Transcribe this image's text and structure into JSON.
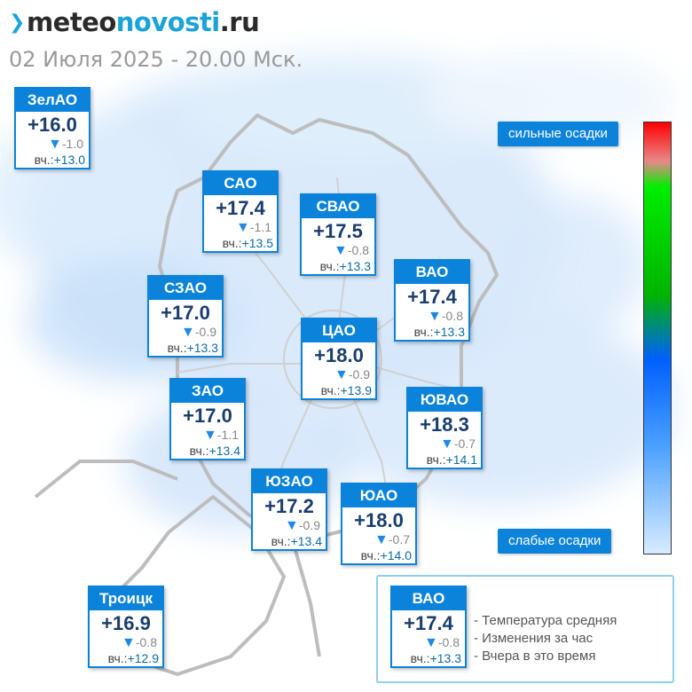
{
  "header": {
    "logo_prefix": "meteo",
    "logo_highlight": "novosti",
    "logo_suffix": ".ru",
    "datetime": "02 Июля 2025 - 20.00 Мск."
  },
  "districts": [
    {
      "id": "zelao",
      "name": "ЗелАО",
      "temp": "+16.0",
      "delta": "-1.0",
      "yesterday": "+13.0"
    },
    {
      "id": "sao",
      "name": "САО",
      "temp": "+17.4",
      "delta": "-1.1",
      "yesterday": "+13.5"
    },
    {
      "id": "svao",
      "name": "СВАО",
      "temp": "+17.5",
      "delta": "-0.8",
      "yesterday": "+13.3"
    },
    {
      "id": "vao",
      "name": "ВАО",
      "temp": "+17.4",
      "delta": "-0.8",
      "yesterday": "+13.3"
    },
    {
      "id": "szao",
      "name": "СЗАО",
      "temp": "+17.0",
      "delta": "-0.9",
      "yesterday": "+13.3"
    },
    {
      "id": "cao",
      "name": "ЦАО",
      "temp": "+18.0",
      "delta": "-0.9",
      "yesterday": "+13.9"
    },
    {
      "id": "zao",
      "name": "ЗАО",
      "temp": "+17.0",
      "delta": "-1.1",
      "yesterday": "+13.4"
    },
    {
      "id": "yuvao",
      "name": "ЮВАО",
      "temp": "+18.3",
      "delta": "-0.7",
      "yesterday": "+14.1"
    },
    {
      "id": "yuzao",
      "name": "ЮЗАО",
      "temp": "+17.2",
      "delta": "-0.9",
      "yesterday": "+13.4"
    },
    {
      "id": "yuao",
      "name": "ЮАО",
      "temp": "+18.0",
      "delta": "-0.7",
      "yesterday": "+14.0"
    },
    {
      "id": "troitsk",
      "name": "Троицк",
      "temp": "+16.9",
      "delta": "-0.8",
      "yesterday": "+12.9"
    }
  ],
  "yesterday_label": "вч.:",
  "delta_icon": "triangle-down-icon",
  "scale": {
    "top_label": "сильные осадки",
    "bottom_label": "слабые осадки"
  },
  "legend": {
    "sample": {
      "name": "ВАО",
      "temp": "+17.4",
      "delta": "-0.8",
      "yesterday": "+13.3"
    },
    "line1": "- Температура средняя",
    "line2": "- Изменения за час",
    "line3": "- Вчера в это время"
  },
  "colors": {
    "accent": "#0c83db",
    "logo_highlight": "#1aa3d9",
    "precipitation_strong": "#ff0000",
    "precipitation_weak": "#d8ecff"
  }
}
